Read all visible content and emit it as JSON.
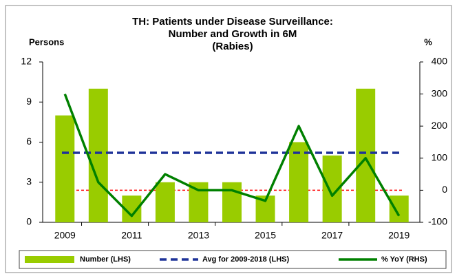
{
  "chart_data": {
    "type": "bar",
    "title": [
      "TH: Patients under Disease Surveillance:",
      "Number and Growth in 6M",
      "(Rabies)"
    ],
    "ylabel": "Persons",
    "y2label": "%",
    "categories": [
      "2009",
      null,
      "2011",
      null,
      "2013",
      null,
      "2015",
      null,
      "2017",
      null,
      "2019"
    ],
    "ylim": [
      0,
      12
    ],
    "yticks": [
      0,
      3,
      6,
      9,
      12
    ],
    "y2lim": [
      -100,
      400
    ],
    "y2ticks": [
      -100,
      0,
      100,
      200,
      300,
      400
    ],
    "zero_line_color": "#ff0000",
    "legend": "bottom",
    "series": [
      {
        "name": "Number (LHS)",
        "type": "bar",
        "color": "#99cc00",
        "values": [
          8,
          10,
          2,
          3,
          3,
          3,
          2,
          6,
          5,
          10,
          2
        ]
      },
      {
        "name": "Avg for 2009-2018 (LHS)",
        "type": "hline",
        "color": "#1f3399",
        "value": 5.2
      },
      {
        "name": "% YoY (RHS)",
        "type": "line",
        "axis": "y2",
        "color": "#008000",
        "values": [
          300,
          25,
          -80,
          50,
          0,
          0,
          -33,
          200,
          -17,
          100,
          -80
        ]
      }
    ]
  }
}
